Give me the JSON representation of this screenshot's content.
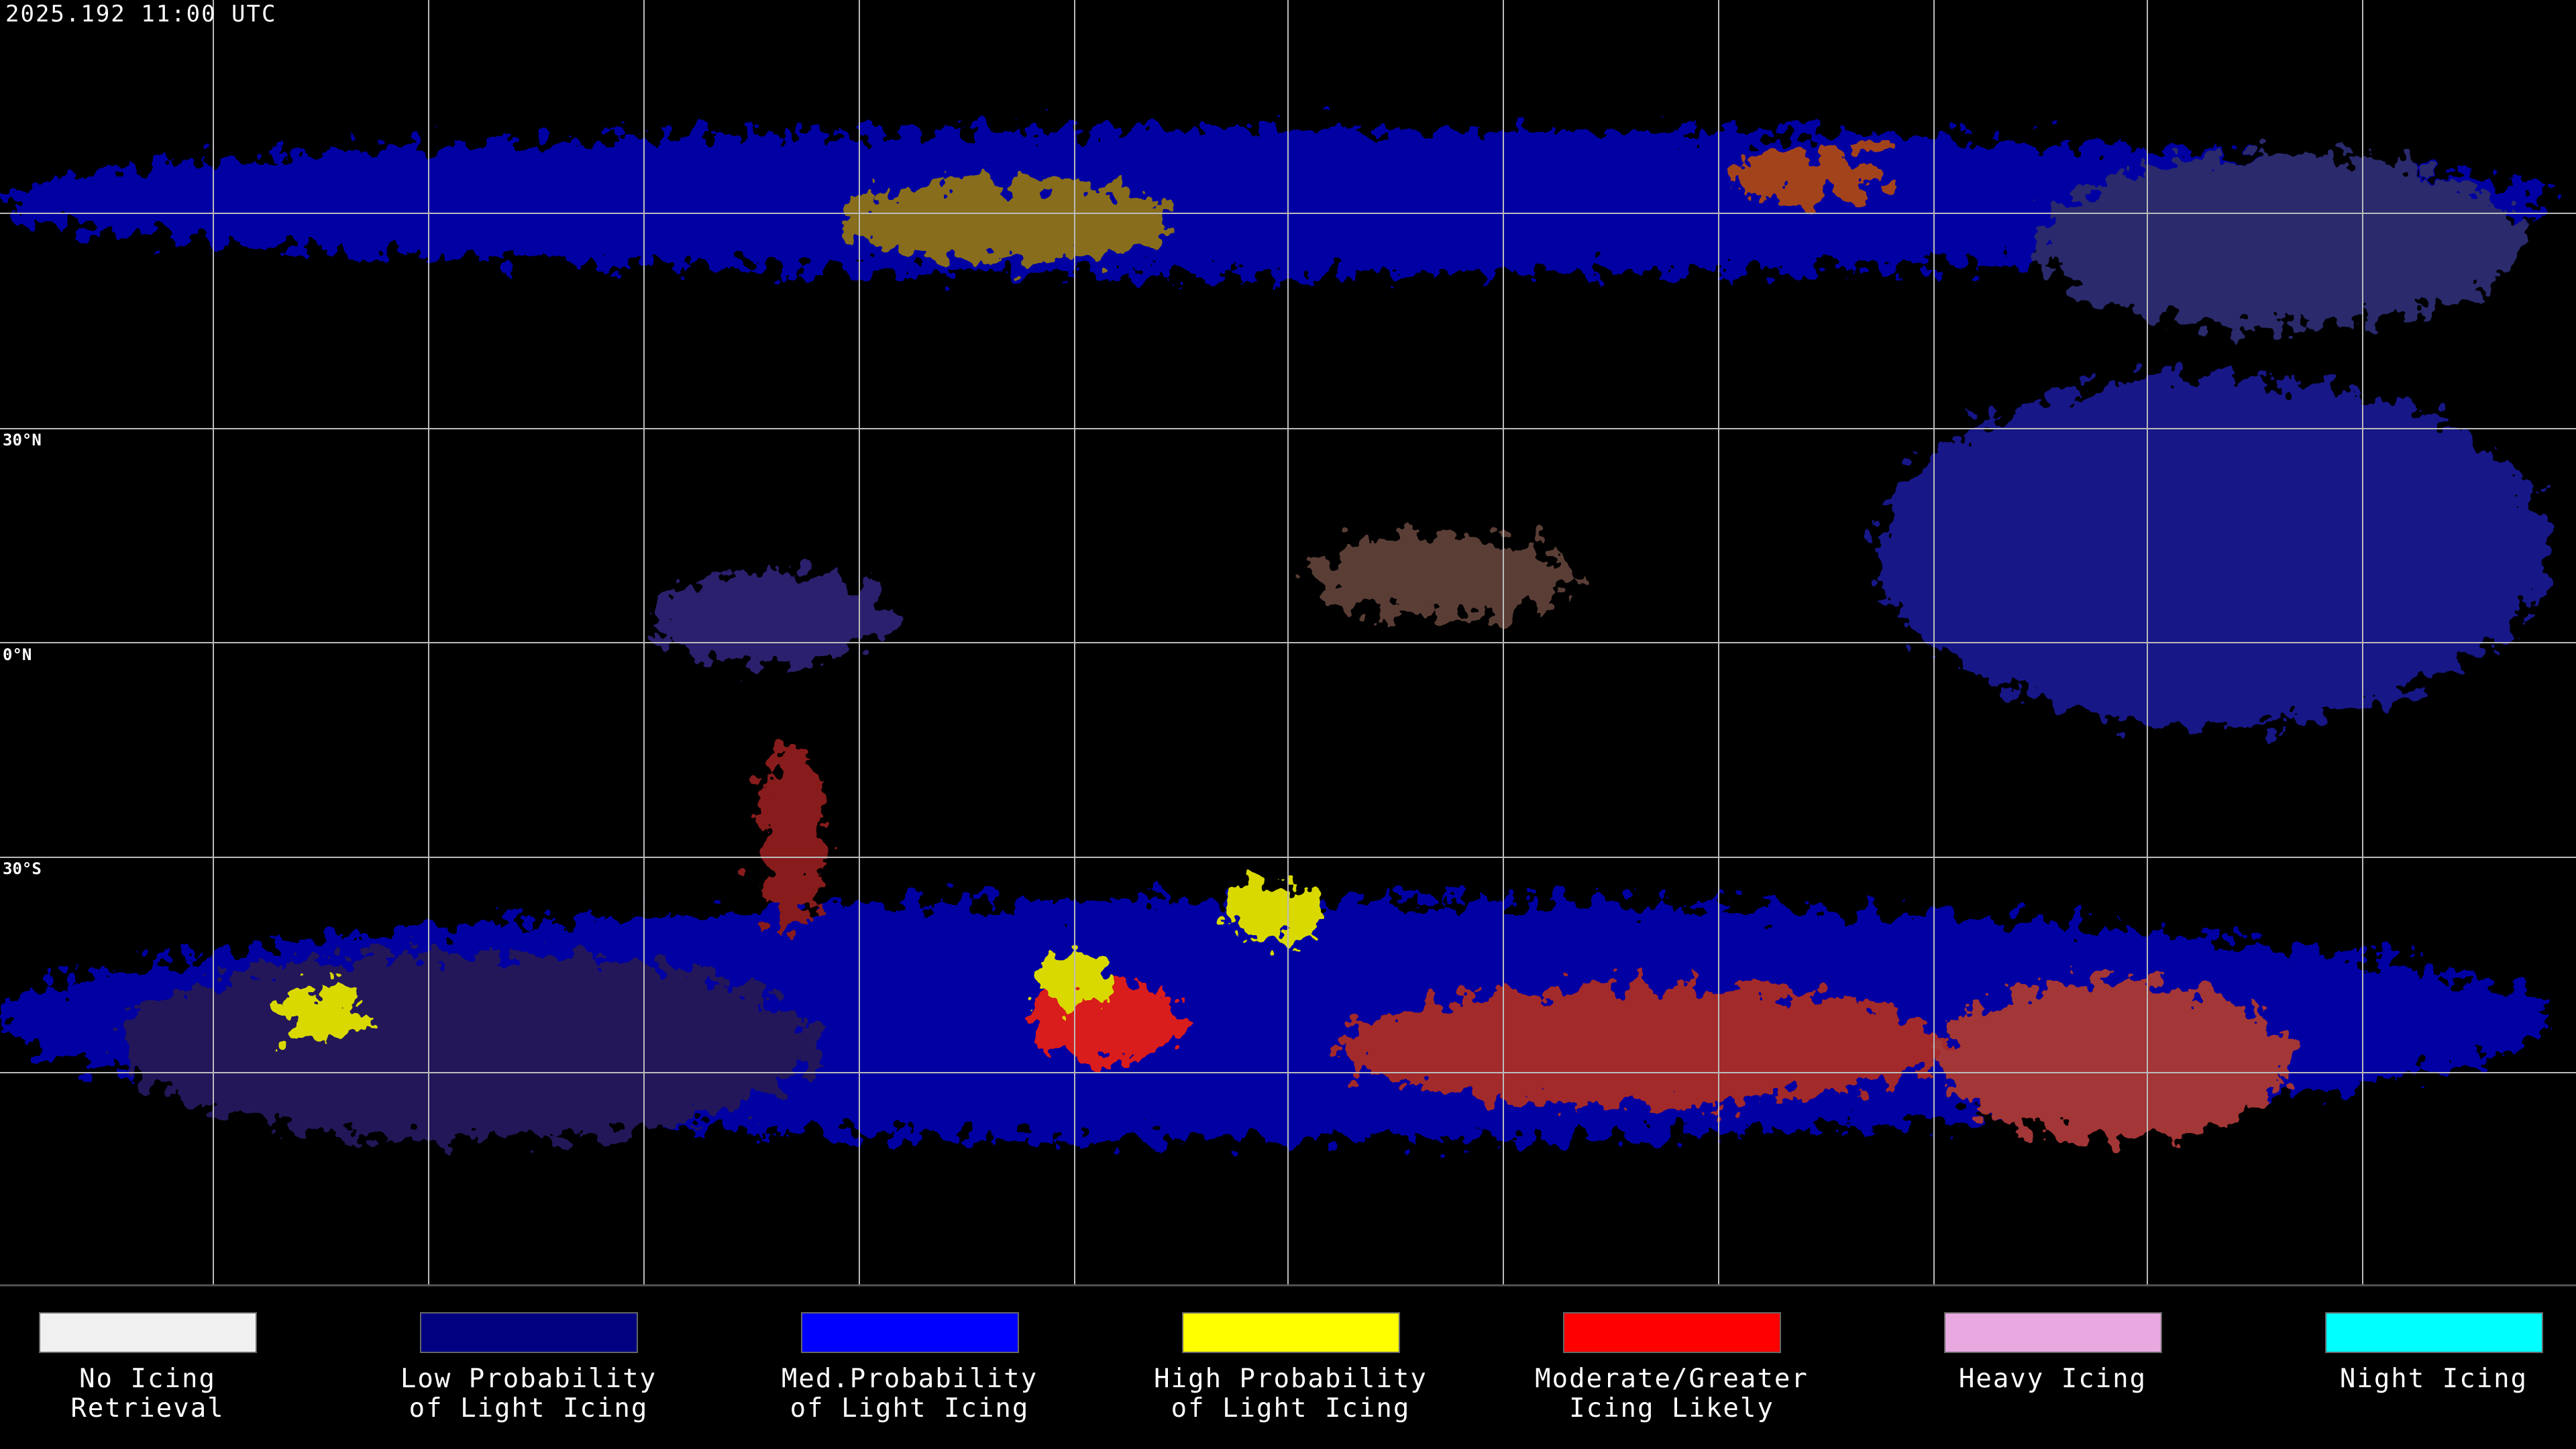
{
  "header": {
    "timestamp": "2025.192 11:00 UTC"
  },
  "map": {
    "latitude_labels": [
      "30°N",
      "0°N",
      "30°S"
    ]
  },
  "legend": [
    {
      "label_lines": [
        "No Icing",
        "Retrieval"
      ],
      "color": "#f0f0f0"
    },
    {
      "label_lines": [
        "Low Probability",
        "of Light Icing"
      ],
      "color": "#000080"
    },
    {
      "label_lines": [
        "Med.Probability",
        "of Light Icing"
      ],
      "color": "#0000ff"
    },
    {
      "label_lines": [
        "High Probability",
        "of Light Icing"
      ],
      "color": "#ffff00"
    },
    {
      "label_lines": [
        "Moderate/Greater",
        "Icing Likely"
      ],
      "color": "#ff0000"
    },
    {
      "label_lines": [
        "Heavy Icing"
      ],
      "color": "#e8a8e0"
    },
    {
      "label_lines": [
        "Night Icing"
      ],
      "color": "#00ffff"
    }
  ]
}
